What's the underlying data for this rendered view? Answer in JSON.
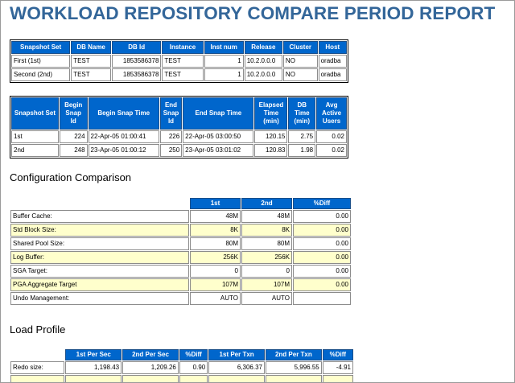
{
  "title": "WORKLOAD REPOSITORY COMPARE PERIOD REPORT",
  "snapshot_table": {
    "headers": [
      "Snapshot Set",
      "DB Name",
      "DB Id",
      "Instance",
      "Inst num",
      "Release",
      "Cluster",
      "Host"
    ],
    "rows": [
      [
        "First (1st)",
        "TEST",
        "1853586378",
        "TEST",
        "1",
        "10.2.0.0.0",
        "NO",
        "oradba"
      ],
      [
        "Second (2nd)",
        "TEST",
        "1853586378",
        "TEST",
        "1",
        "10.2.0.0.0",
        "NO",
        "oradba"
      ]
    ]
  },
  "snap_time_table": {
    "headers": [
      "Snapshot Set",
      "Begin Snap Id",
      "Begin Snap Time",
      "End Snap Id",
      "End Snap Time",
      "Elapsed Time (min)",
      "DB Time (min)",
      "Avg Active Users"
    ],
    "rows": [
      [
        "1st",
        "224",
        "22-Apr-05 01:00:41",
        "226",
        "22-Apr-05 03:00:50",
        "120.15",
        "2.75",
        "0.02"
      ],
      [
        "2nd",
        "248",
        "23-Apr-05 01:00:12",
        "250",
        "23-Apr-05 03:01:02",
        "120.83",
        "1.98",
        "0.02"
      ]
    ]
  },
  "config_section": {
    "heading": "Configuration Comparison",
    "headers": [
      "1st",
      "2nd",
      "%Diff"
    ],
    "rows": [
      [
        "Buffer Cache:",
        "48M",
        "48M",
        "0.00"
      ],
      [
        "Std Block Size:",
        "8K",
        "8K",
        "0.00"
      ],
      [
        "Shared Pool Size:",
        "80M",
        "80M",
        "0.00"
      ],
      [
        "Log Buffer:",
        "256K",
        "256K",
        "0.00"
      ],
      [
        "SGA Target:",
        "0",
        "0",
        "0.00"
      ],
      [
        "PGA Aggregate Target",
        "107M",
        "107M",
        "0.00"
      ],
      [
        "Undo Management:",
        "AUTO",
        "AUTO",
        ""
      ]
    ]
  },
  "load_section": {
    "heading": "Load Profile",
    "headers": [
      "1st Per Sec",
      "2nd Per Sec",
      "%Diff",
      "1st Per Txn",
      "2nd Per Txn",
      "%Diff"
    ],
    "rows": [
      [
        "Redo size:",
        "1,198.43",
        "1,209.26",
        "0.90",
        "6,306.37",
        "5,996.55",
        "-4.91"
      ]
    ]
  },
  "colors": {
    "title": "#336699",
    "header_bg": "#0066cc",
    "highlight_row": "#ffffcc"
  }
}
